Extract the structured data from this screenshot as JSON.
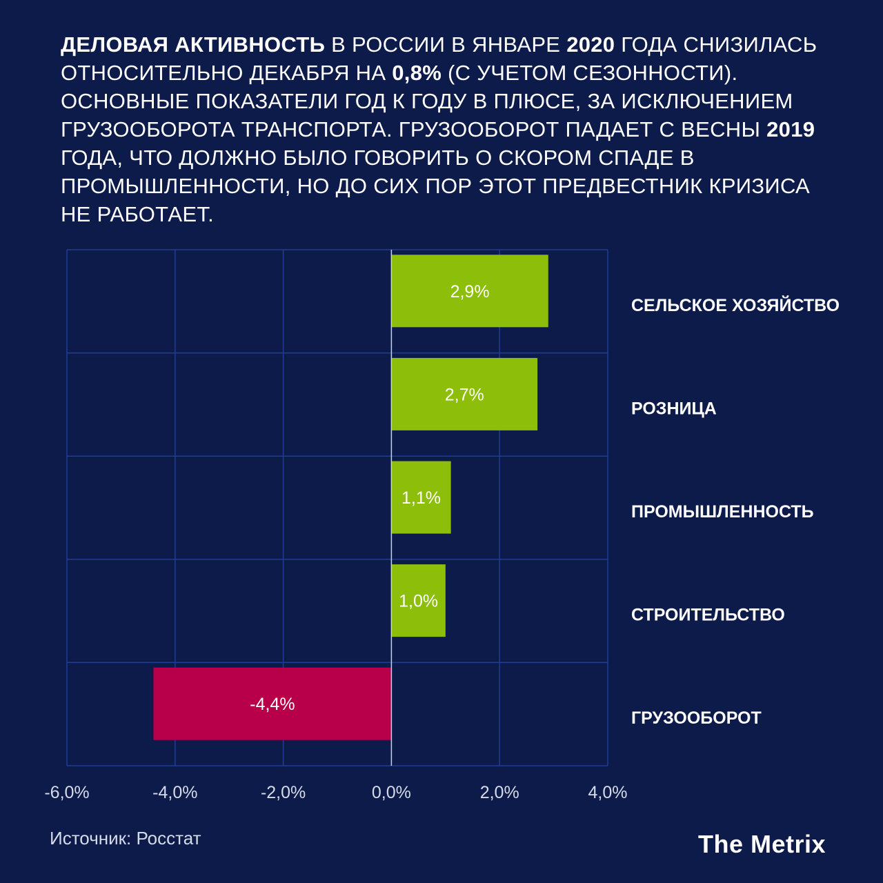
{
  "headline": {
    "parts": [
      {
        "text": "Деловая активность",
        "bold": true
      },
      {
        "text": " в России в январе ",
        "bold": false
      },
      {
        "text": "2020",
        "bold": true
      },
      {
        "text": " года снизилась относительно декабря на ",
        "bold": false
      },
      {
        "text": "0,8%",
        "bold": true
      },
      {
        "text": " (с учетом сезонности). Основные показатели год к году в плюсе, за исключением грузооборота транспорта. Грузооборот падает с весны ",
        "bold": false
      },
      {
        "text": "2019",
        "bold": true
      },
      {
        "text": " года, что должно было говорить о скором спаде в промышленности, но до сих пор этот предвестник кризиса не работает.",
        "bold": false
      }
    ]
  },
  "chart_data": {
    "type": "bar",
    "orientation": "horizontal",
    "categories": [
      "СЕЛЬСКОЕ ХОЗЯЙСТВО",
      "РОЗНИЦА",
      "ПРОМЫШЛЕННОСТЬ",
      "СТРОИТЕЛЬСТВО",
      "ГРУЗООБОРОТ"
    ],
    "values": [
      2.9,
      2.7,
      1.1,
      1.0,
      -4.4
    ],
    "value_labels": [
      "2,9%",
      "2,7%",
      "1,1%",
      "1,0%",
      "-4,4%"
    ],
    "xlim": [
      -6,
      4
    ],
    "x_ticks": [
      -6,
      -4,
      -2,
      0,
      2,
      4
    ],
    "x_tick_labels": [
      "-6,0%",
      "-4,0%",
      "-2,0%",
      "0,0%",
      "2,0%",
      "4,0%"
    ],
    "grid": true,
    "category_labels_side": "right",
    "colors": {
      "positive": "#8dbf0a",
      "negative": "#b8004a",
      "grid": "#1f3d92",
      "zero_line": "#c9d0e4"
    }
  },
  "footer": {
    "source": "Источник: Росстат",
    "brand": "The Metrix"
  },
  "colors": {
    "background": "#0d1b4b"
  }
}
